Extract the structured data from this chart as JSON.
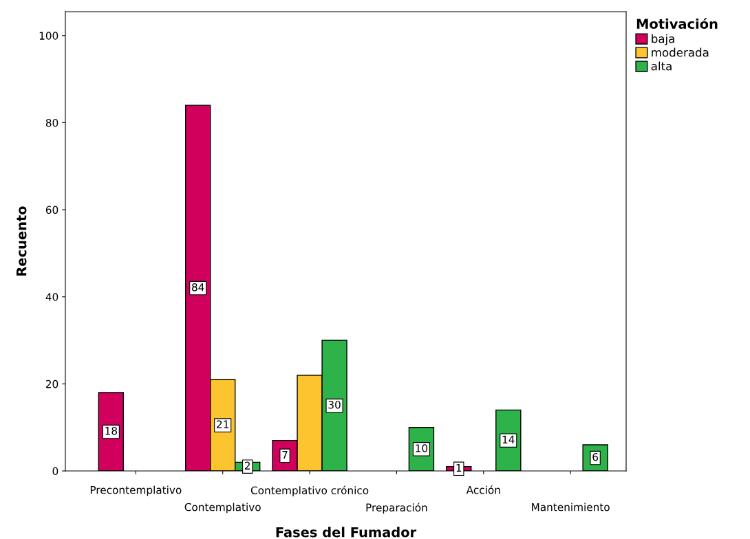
{
  "chart_data": {
    "type": "bar",
    "xlabel": "Fases del Fumador",
    "ylabel": "Recuento",
    "legend_title": "Motivación",
    "legend": "top right",
    "categories": [
      "Precontemplativo",
      "Contemplativo",
      "Contemplativo crónico",
      "Preparación",
      "Acción",
      "Mantenimiento"
    ],
    "series": [
      {
        "name": "baja",
        "color": "#d1005d",
        "values": [
          18,
          84,
          7,
          null,
          1,
          null
        ],
        "value_labels": [
          "18",
          "84",
          "7",
          null,
          "1",
          null
        ]
      },
      {
        "name": "moderada",
        "color": "#fcc42e",
        "values": [
          null,
          21,
          22,
          null,
          null,
          null
        ],
        "value_labels": [
          null,
          "21",
          null,
          null,
          null,
          null
        ]
      },
      {
        "name": "alta",
        "color": "#2eb34a",
        "values": [
          null,
          2,
          30,
          10,
          14,
          6
        ],
        "value_labels": [
          null,
          "2",
          "30",
          "10",
          "14",
          "6"
        ]
      }
    ],
    "ylim": [
      0,
      105.5
    ],
    "yticks": [
      0,
      20,
      40,
      60,
      80,
      100
    ],
    "grid": false
  }
}
